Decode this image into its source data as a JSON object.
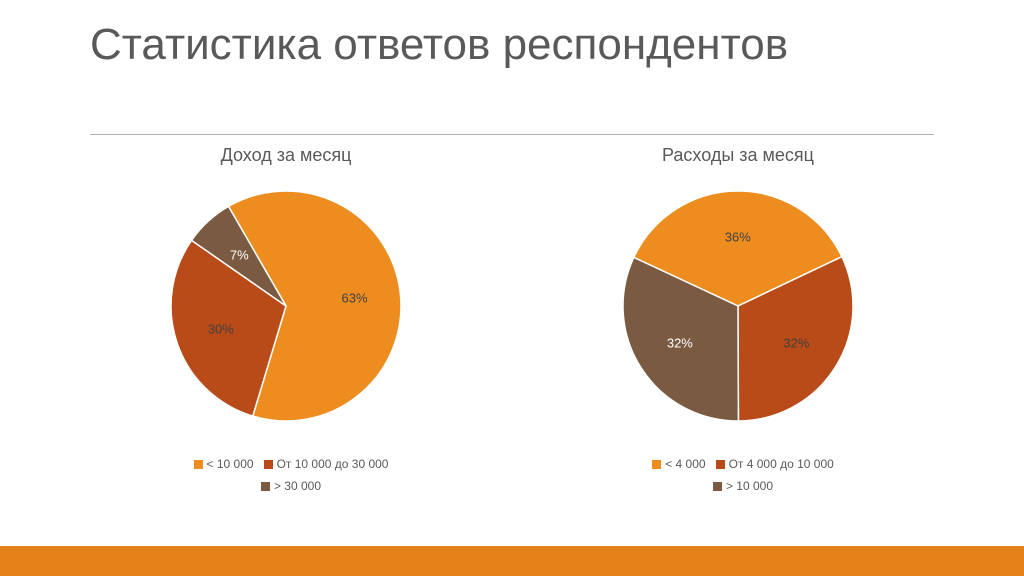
{
  "title": "Статистика ответов респондентов",
  "colors": {
    "title_text": "#595959",
    "underline": "#b0b0b0",
    "footer_bar": "#e38219",
    "label_dark": "#404040",
    "label_light": "#ffffff",
    "background": "#ffffff"
  },
  "charts": [
    {
      "title": "Доход за месяц",
      "title_fontsize": 18,
      "type": "pie",
      "radius": 115,
      "start_angle_deg": -30,
      "slices": [
        {
          "label": "<  10 000",
          "value": 63,
          "color": "#ed8c1f",
          "text": "63%",
          "text_color": "#404040"
        },
        {
          "label": "От 10 000 до 30 000",
          "value": 30,
          "color": "#b84b17",
          "text": "30%",
          "text_color": "#404040"
        },
        {
          "label": "> 30 000",
          "value": 7,
          "color": "#7b5a42",
          "text": "7%",
          "text_color": "#ffffff"
        }
      ]
    },
    {
      "title": "Расходы за месяц",
      "title_fontsize": 18,
      "type": "pie",
      "radius": 115,
      "start_angle_deg": -65,
      "slices": [
        {
          "label": "< 4 000",
          "value": 36,
          "color": "#ed8c1f",
          "text": "36%",
          "text_color": "#404040"
        },
        {
          "label": "От 4 000 до 10 000",
          "value": 32,
          "color": "#b84b17",
          "text": "32%",
          "text_color": "#404040"
        },
        {
          "label": "> 10 000",
          "value": 32,
          "color": "#7b5a42",
          "text": "32%",
          "text_color": "#ffffff"
        }
      ]
    }
  ],
  "legend_fontsize": 12,
  "slice_label_fontsize": 13
}
